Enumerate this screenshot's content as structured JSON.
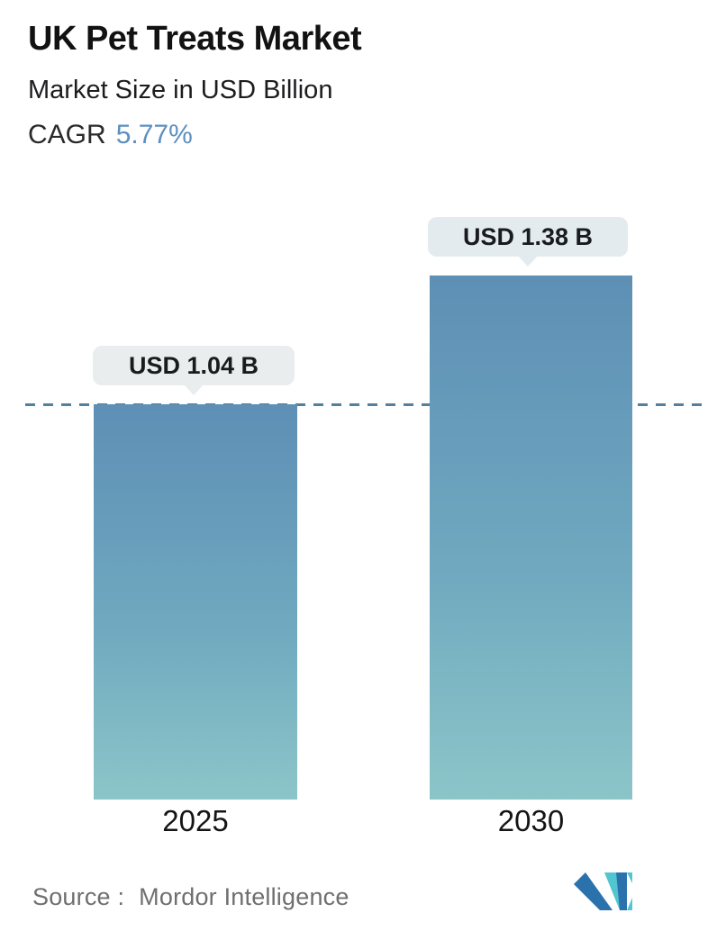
{
  "header": {
    "title": "UK Pet Treats Market",
    "subtitle": "Market Size in USD Billion",
    "cagr_label": "CAGR",
    "cagr_value": "5.77%"
  },
  "chart_data": {
    "type": "bar",
    "categories": [
      "2025",
      "2030"
    ],
    "values": [
      1.04,
      1.38
    ],
    "value_labels": [
      "USD 1.04 B",
      "USD 1.38 B"
    ],
    "title": "UK Pet Treats Market",
    "subtitle": "Market Size in USD Billion",
    "ylabel": "Market Size (USD Billion)",
    "xlabel": "",
    "ylim": [
      0,
      1.47
    ],
    "grid": false,
    "legend": "none",
    "cagr_percent": 5.77,
    "reference_line": {
      "value": 1.04,
      "style": "dashed",
      "color": "#54809f"
    }
  },
  "footer": {
    "source_label": "Source :",
    "source_value": "Mordor Intelligence",
    "logo_name": "mordor-intelligence-logo"
  },
  "colors": {
    "cagr_value": "#5d8fbf",
    "bar_gradient_top": "#5e8fb5",
    "bar_gradient_mid": "#6fa8bf",
    "bar_gradient_bottom": "#8cc5c8",
    "dashed_line": "#54809f",
    "tooltip_bg_2025": "#eaedee",
    "tooltip_bg_2030": "#e3ebee",
    "logo_blue": "#2b72ad",
    "logo_teal": "#52c6d0",
    "text_dark": "#121212",
    "source_gray": "#6f6f6f"
  }
}
